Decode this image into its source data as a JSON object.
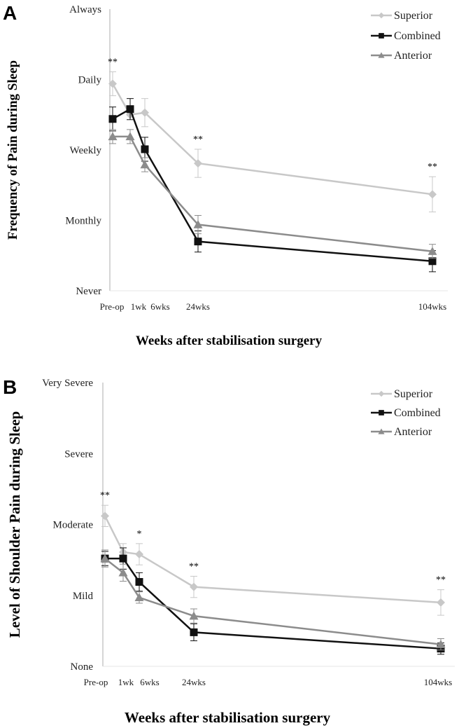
{
  "colors": {
    "Superior": "#c8c8c8",
    "Combined": "#111111",
    "Anterior": "#8c8c8c"
  },
  "chart_data": [
    {
      "panel_label": "A",
      "type": "line",
      "categories": [
        "Pre-op",
        "1wk",
        "6wks",
        "24wks",
        "104wks"
      ],
      "xlabel": "Weeks after stabilisation surgery",
      "ylabel": "Frequency of Pain during Sleep",
      "y_tick_labels": [
        "Never",
        "Monthly",
        "Weekly",
        "Daily",
        "Always"
      ],
      "ylim": [
        0,
        4
      ],
      "legend_position": "top-right",
      "significance": [
        "**",
        "",
        "",
        "**",
        "**"
      ],
      "series": [
        {
          "name": "Superior",
          "marker": "diamond",
          "values": [
            2.94,
            2.5,
            2.53,
            1.81,
            1.37
          ],
          "errors": [
            0.17,
            0,
            0.2,
            0.2,
            0.25
          ]
        },
        {
          "name": "Combined",
          "marker": "square",
          "values": [
            2.44,
            2.58,
            2.01,
            0.7,
            0.42
          ],
          "errors": [
            0.17,
            0.15,
            0.17,
            0.15,
            0.15
          ]
        },
        {
          "name": "Anterior",
          "marker": "triangle",
          "values": [
            2.19,
            2.19,
            1.79,
            0.94,
            0.56
          ],
          "errors": [
            0.1,
            0.1,
            0.1,
            0.13,
            0.1
          ]
        }
      ]
    },
    {
      "panel_label": "B",
      "type": "line",
      "categories": [
        "Pre-op",
        "1wk",
        "6wks",
        "24wks",
        "104wks"
      ],
      "xlabel": "Weeks after stabilisation surgery",
      "ylabel": "Level of Shoulder Pain during Sleep",
      "y_tick_labels": [
        "None",
        "Mild",
        "Moderate",
        "Severe",
        "Very Severe"
      ],
      "ylim": [
        0,
        4
      ],
      "legend_position": "top-right",
      "significance": [
        "**",
        "",
        "*",
        "**",
        "**"
      ],
      "series": [
        {
          "name": "Superior",
          "marker": "diamond",
          "values": [
            2.12,
            1.61,
            1.58,
            1.12,
            0.9
          ],
          "errors": [
            0.15,
            0.12,
            0.15,
            0.15,
            0.18
          ]
        },
        {
          "name": "Combined",
          "marker": "square",
          "values": [
            1.52,
            1.52,
            1.19,
            0.48,
            0.25
          ],
          "errors": [
            0.1,
            0.15,
            0.13,
            0.12,
            0.08
          ]
        },
        {
          "name": "Anterior",
          "marker": "triangle",
          "values": [
            1.52,
            1.32,
            0.97,
            0.71,
            0.31
          ],
          "errors": [
            0.12,
            0.12,
            0.08,
            0.1,
            0.08
          ]
        }
      ]
    }
  ]
}
